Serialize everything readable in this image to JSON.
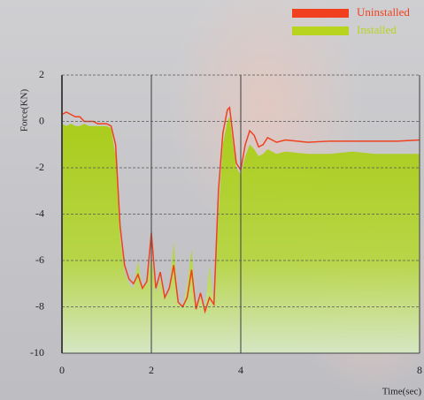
{
  "chart_data": {
    "type": "line-area",
    "x_label": "Time(sec)",
    "y_label": "Force(KN)",
    "x": [
      0,
      0.1,
      0.2,
      0.3,
      0.4,
      0.5,
      0.6,
      0.7,
      0.8,
      0.9,
      1.0,
      1.1,
      1.2,
      1.3,
      1.4,
      1.5,
      1.6,
      1.7,
      1.8,
      1.9,
      2.0,
      2.1,
      2.2,
      2.3,
      2.4,
      2.5,
      2.6,
      2.7,
      2.8,
      2.9,
      3.0,
      3.1,
      3.2,
      3.3,
      3.4,
      3.5,
      3.6,
      3.7,
      3.75,
      3.8,
      3.9,
      4.0,
      4.1,
      4.2,
      4.3,
      4.4,
      4.5,
      4.6,
      4.8,
      5.0,
      5.5,
      6.0,
      6.5,
      7.0,
      7.5,
      8.0
    ],
    "series": [
      {
        "name": "Uninstalled",
        "color": "#f0401e",
        "style": "line",
        "values": [
          0.3,
          0.4,
          0.3,
          0.2,
          0.2,
          0.0,
          0.0,
          0.0,
          -0.1,
          -0.1,
          -0.1,
          -0.2,
          -1.0,
          -4.5,
          -6.2,
          -6.8,
          -7.0,
          -6.6,
          -7.2,
          -6.9,
          -4.8,
          -7.2,
          -6.5,
          -7.6,
          -7.2,
          -6.2,
          -7.8,
          -8.0,
          -7.6,
          -6.4,
          -8.1,
          -7.4,
          -8.2,
          -7.6,
          -7.9,
          -3.0,
          -0.5,
          0.5,
          0.6,
          -0.2,
          -1.8,
          -2.1,
          -1.0,
          -0.4,
          -0.6,
          -1.1,
          -1.0,
          -0.7,
          -0.9,
          -0.8,
          -0.9,
          -0.85,
          -0.85,
          -0.85,
          -0.85,
          -0.8
        ]
      },
      {
        "name": "Installed",
        "color": "#b8d41e",
        "style": "area",
        "values": [
          -0.1,
          -0.2,
          -0.1,
          -0.2,
          -0.2,
          -0.1,
          -0.2,
          -0.2,
          -0.2,
          -0.2,
          -0.2,
          -0.3,
          -1.5,
          -5.0,
          -6.5,
          -7.0,
          -7.2,
          -6.0,
          -7.2,
          -7.0,
          -5.8,
          -7.4,
          -6.8,
          -7.6,
          -7.4,
          -5.2,
          -7.8,
          -8.0,
          -7.0,
          -5.5,
          -8.0,
          -7.6,
          -8.0,
          -6.2,
          -7.8,
          -4.0,
          -1.0,
          0.0,
          0.2,
          -0.6,
          -2.0,
          -2.3,
          -1.5,
          -1.0,
          -1.2,
          -1.5,
          -1.4,
          -1.2,
          -1.4,
          -1.3,
          -1.4,
          -1.4,
          -1.3,
          -1.4,
          -1.4,
          -1.4
        ]
      }
    ],
    "xlim": [
      0,
      8
    ],
    "xticks": [
      0,
      2,
      4,
      8
    ],
    "ylim": [
      -10,
      2
    ],
    "yticks": [
      -10,
      -8,
      -6,
      -4,
      -2,
      0,
      2
    ],
    "grid": true,
    "legend": "top-right"
  }
}
